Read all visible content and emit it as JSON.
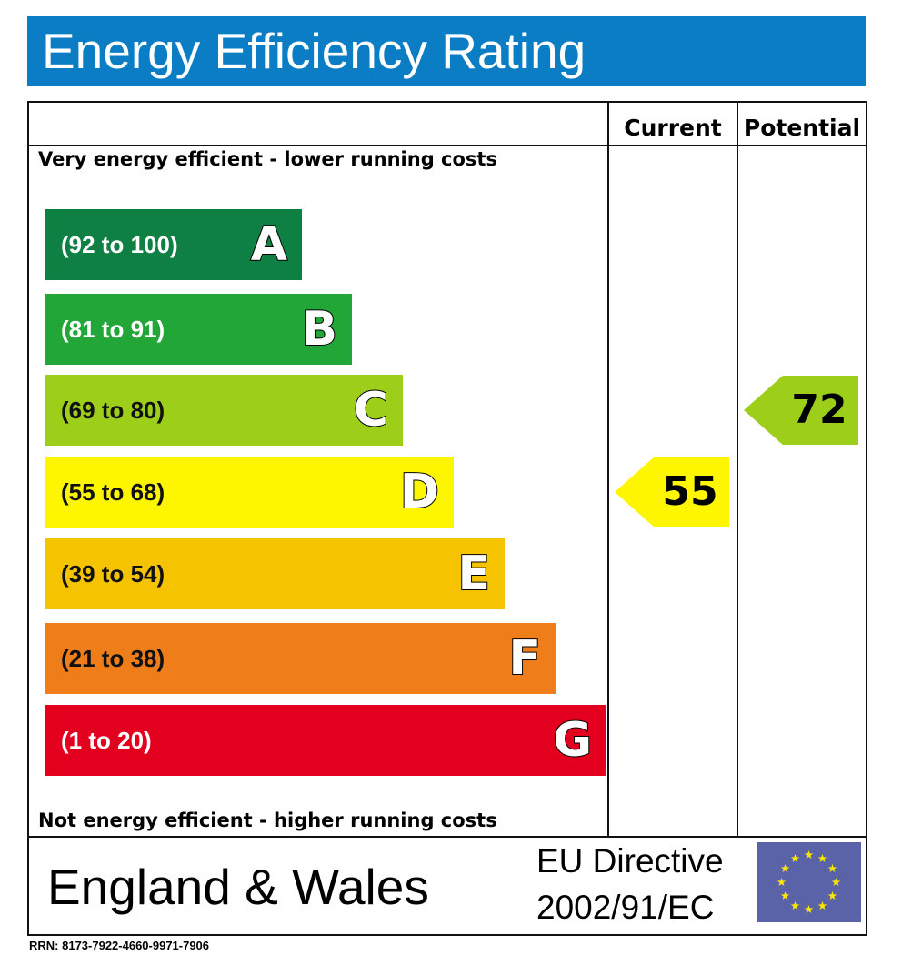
{
  "header": {
    "title": "Energy Efficiency Rating"
  },
  "columns": {
    "current": "Current",
    "potential": "Potential"
  },
  "notes": {
    "top": "Very energy efficient - lower running costs",
    "bottom": "Not energy efficient - higher running costs"
  },
  "chart_data": {
    "type": "bar",
    "bands": [
      {
        "letter": "A",
        "range": "(92 to 100)",
        "min": 92,
        "max": 100,
        "color": "#0f8043"
      },
      {
        "letter": "B",
        "range": "(81 to 91)",
        "min": 81,
        "max": 91,
        "color": "#22a637"
      },
      {
        "letter": "C",
        "range": "(69 to 80)",
        "min": 69,
        "max": 80,
        "color": "#9dcf1a"
      },
      {
        "letter": "D",
        "range": "(55 to 68)",
        "min": 55,
        "max": 68,
        "color": "#fdf600"
      },
      {
        "letter": "E",
        "range": "(39 to 54)",
        "min": 39,
        "max": 54,
        "color": "#f6c300"
      },
      {
        "letter": "F",
        "range": "(21 to 38)",
        "min": 21,
        "max": 38,
        "color": "#ef7d1a"
      },
      {
        "letter": "G",
        "range": "(1 to 20)",
        "min": 1,
        "max": 20,
        "color": "#e3001e"
      }
    ],
    "current": {
      "value": 55,
      "label": "55",
      "band": "D",
      "color": "#fdf600"
    },
    "potential": {
      "value": 72,
      "label": "72",
      "band": "C",
      "color": "#9dcf1a"
    }
  },
  "footer": {
    "region": "England & Wales",
    "directive_line1": "EU Directive",
    "directive_line2": "2002/91/EC",
    "flag_icon": "eu-flag-icon",
    "rrn": "RRN: 8173-7922-4660-9971-7906"
  },
  "colors": {
    "header": "#0b7dc4",
    "flag_blue": "#5a63a8",
    "flag_star": "#ffe800"
  }
}
